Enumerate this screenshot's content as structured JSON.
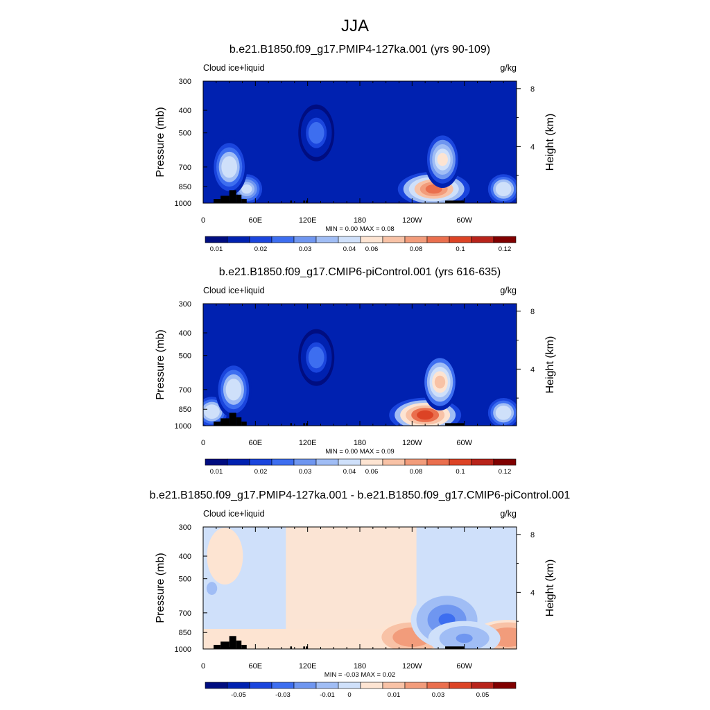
{
  "figure_title": "JJA",
  "chart_data": [
    {
      "type": "heatmap",
      "title": "b.e21.B1850.f09_g17.PMIP4-127ka.001 (yrs 90-109)",
      "left_label": "Cloud ice+liquid",
      "right_label": "g/kg",
      "ylabel": "Pressure (mb)",
      "y2label": "Height (km)",
      "x_ticks": [
        "0",
        "60E",
        "120E",
        "180",
        "120W",
        "60W"
      ],
      "x_tick_lon": [
        0,
        60,
        120,
        180,
        240,
        300
      ],
      "y_ticks": [
        "300",
        "400",
        "500",
        "700",
        "850",
        "1000"
      ],
      "y_tick_p": [
        300,
        400,
        500,
        700,
        850,
        1000
      ],
      "y2_ticks": [
        "8",
        "4"
      ],
      "y2_tick_km": [
        8,
        4
      ],
      "minmax_text": "MIN =   0.00  MAX =   0.08",
      "min": 0.0,
      "max": 0.08,
      "colorbar_labels": [
        "0.01",
        "0.02",
        "0.03",
        "0.04",
        "0.06",
        "0.08",
        "0.1",
        "0.12"
      ],
      "features": [
        {
          "lon": 50,
          "p": 870,
          "value": 0.035
        },
        {
          "lon": 30,
          "p": 700,
          "value": 0.04
        },
        {
          "lon": 265,
          "p": 870,
          "value": 0.08
        },
        {
          "lon": 275,
          "p": 650,
          "value": 0.045
        },
        {
          "lon": 345,
          "p": 870,
          "value": 0.04
        },
        {
          "lon": 130,
          "p": 500,
          "value": 0.02
        }
      ]
    },
    {
      "type": "heatmap",
      "title": "b.e21.B1850.f09_g17.CMIP6-piControl.001 (yrs 616-635)",
      "left_label": "Cloud ice+liquid",
      "right_label": "g/kg",
      "ylabel": "Pressure (mb)",
      "y2label": "Height (km)",
      "x_ticks": [
        "0",
        "60E",
        "120E",
        "180",
        "120W",
        "60W"
      ],
      "x_tick_lon": [
        0,
        60,
        120,
        180,
        240,
        300
      ],
      "y_ticks": [
        "300",
        "400",
        "500",
        "700",
        "850",
        "1000"
      ],
      "y_tick_p": [
        300,
        400,
        500,
        700,
        850,
        1000
      ],
      "y2_ticks": [
        "8",
        "4"
      ],
      "y2_tick_km": [
        8,
        4
      ],
      "minmax_text": "MIN =   0.00  MAX =   0.09",
      "min": 0.0,
      "max": 0.09,
      "colorbar_labels": [
        "0.01",
        "0.02",
        "0.03",
        "0.04",
        "0.06",
        "0.08",
        "0.1",
        "0.12"
      ],
      "features": [
        {
          "lon": 10,
          "p": 870,
          "value": 0.04
        },
        {
          "lon": 35,
          "p": 700,
          "value": 0.04
        },
        {
          "lon": 255,
          "p": 900,
          "value": 0.09
        },
        {
          "lon": 272,
          "p": 650,
          "value": 0.05
        },
        {
          "lon": 345,
          "p": 880,
          "value": 0.04
        },
        {
          "lon": 130,
          "p": 510,
          "value": 0.02
        }
      ]
    },
    {
      "type": "heatmap",
      "title": "b.e21.B1850.f09_g17.PMIP4-127ka.001 - b.e21.B1850.f09_g17.CMIP6-piControl.001",
      "left_label": "Cloud ice+liquid",
      "right_label": "g/kg",
      "ylabel": "Pressure (mb)",
      "y2label": "Height (km)",
      "x_ticks": [
        "0",
        "60E",
        "120E",
        "180",
        "120W",
        "60W"
      ],
      "x_tick_lon": [
        0,
        60,
        120,
        180,
        240,
        300
      ],
      "y_ticks": [
        "300",
        "400",
        "500",
        "700",
        "850",
        "1000"
      ],
      "y_tick_p": [
        300,
        400,
        500,
        700,
        850,
        1000
      ],
      "y2_ticks": [
        "8",
        "4"
      ],
      "y2_tick_km": [
        8,
        4
      ],
      "minmax_text": "MIN =  -0.03  MAX =   0.02",
      "min": -0.03,
      "max": 0.02,
      "colorbar_labels": [
        "-0.05",
        "-0.03",
        "-0.01",
        "0",
        "0.01",
        "0.03",
        "0.05"
      ],
      "features": [
        {
          "lon": 240,
          "p": 890,
          "value": 0.02
        },
        {
          "lon": 350,
          "p": 890,
          "value": 0.02
        },
        {
          "lon": 280,
          "p": 750,
          "value": -0.03
        },
        {
          "lon": 300,
          "p": 900,
          "value": -0.02
        },
        {
          "lon": 10,
          "p": 550,
          "value": -0.01
        },
        {
          "lon": 25,
          "p": 400,
          "value": 0.005
        }
      ]
    }
  ],
  "colors": {
    "seq": [
      "#000d80",
      "#0021b0",
      "#1a45dd",
      "#3d6ef0",
      "#6f96f0",
      "#a0bdf5",
      "#cfe0fa",
      "#fde4d2",
      "#f8c2a6",
      "#f29c7b",
      "#ea6f4e",
      "#dc4325",
      "#b8231a",
      "#800000"
    ],
    "diff": [
      "#000d80",
      "#0021b0",
      "#1a45dd",
      "#3d6ef0",
      "#6f96f0",
      "#a0bdf5",
      "#cfe0fa",
      "#fde4d2",
      "#f8c2a6",
      "#f29c7b",
      "#ea6f4e",
      "#dc4325",
      "#b8231a",
      "#800000"
    ],
    "topography": "#000000"
  }
}
